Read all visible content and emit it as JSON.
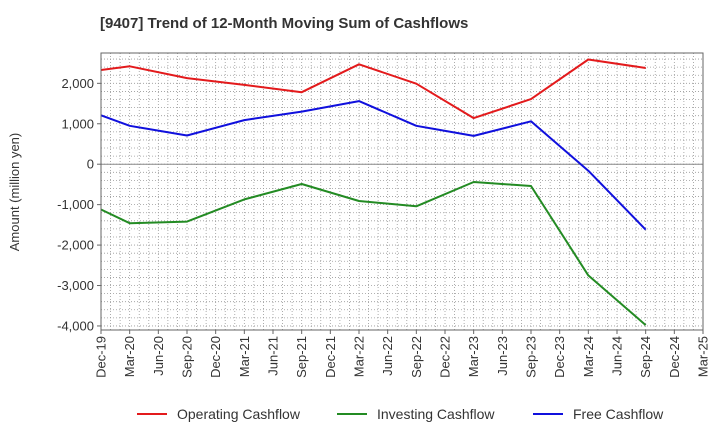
{
  "chart_data": {
    "type": "line",
    "title": "[9407]  Trend of 12-Month Moving Sum of Cashflows",
    "xlabel": "",
    "ylabel": "Amount (million yen)",
    "categories": [
      "Dec-19",
      "Mar-20",
      "Jun-20",
      "Sep-20",
      "Dec-20",
      "Mar-21",
      "Jun-21",
      "Sep-21",
      "Dec-21",
      "Mar-22",
      "Jun-22",
      "Sep-22",
      "Dec-22",
      "Mar-23",
      "Jun-23",
      "Sep-23",
      "Dec-23",
      "Mar-24",
      "Jun-24",
      "Sep-24",
      "Dec-24",
      "Mar-25"
    ],
    "yticks": [
      2000,
      1000,
      0,
      -1000,
      -2000,
      -3000,
      -4000
    ],
    "ytick_labels": [
      "2,000",
      "1,000",
      "0",
      "-1,000",
      "-2,000",
      "-3,000",
      "-4,000"
    ],
    "ylim": [
      -4100,
      2750
    ],
    "grid": true,
    "legend_position": "bottom",
    "series": [
      {
        "name": "Operating Cashflow",
        "color": "#e31a1c",
        "points": [
          {
            "x": "Dec-19",
            "y": 2330
          },
          {
            "x": "Mar-20",
            "y": 2420
          },
          {
            "x": "Sep-20",
            "y": 2130
          },
          {
            "x": "Mar-21",
            "y": 1960
          },
          {
            "x": "Sep-21",
            "y": 1780
          },
          {
            "x": "Mar-22",
            "y": 2470
          },
          {
            "x": "Sep-22",
            "y": 1990
          },
          {
            "x": "Mar-23",
            "y": 1140
          },
          {
            "x": "Sep-23",
            "y": 1610
          },
          {
            "x": "Mar-24",
            "y": 2590
          },
          {
            "x": "Sep-24",
            "y": 2380
          }
        ]
      },
      {
        "name": "Investing Cashflow",
        "color": "#238b23",
        "points": [
          {
            "x": "Dec-19",
            "y": -1120
          },
          {
            "x": "Mar-20",
            "y": -1460
          },
          {
            "x": "Sep-20",
            "y": -1420
          },
          {
            "x": "Mar-21",
            "y": -870
          },
          {
            "x": "Sep-21",
            "y": -490
          },
          {
            "x": "Mar-22",
            "y": -910
          },
          {
            "x": "Sep-22",
            "y": -1040
          },
          {
            "x": "Mar-23",
            "y": -440
          },
          {
            "x": "Sep-23",
            "y": -540
          },
          {
            "x": "Mar-24",
            "y": -2750
          },
          {
            "x": "Sep-24",
            "y": -3980
          }
        ]
      },
      {
        "name": "Free Cashflow",
        "color": "#1010dd",
        "points": [
          {
            "x": "Dec-19",
            "y": 1210
          },
          {
            "x": "Mar-20",
            "y": 950
          },
          {
            "x": "Sep-20",
            "y": 710
          },
          {
            "x": "Mar-21",
            "y": 1090
          },
          {
            "x": "Sep-21",
            "y": 1300
          },
          {
            "x": "Mar-22",
            "y": 1560
          },
          {
            "x": "Sep-22",
            "y": 950
          },
          {
            "x": "Mar-23",
            "y": 700
          },
          {
            "x": "Sep-23",
            "y": 1060
          },
          {
            "x": "Mar-24",
            "y": -160
          },
          {
            "x": "Sep-24",
            "y": -1620
          }
        ]
      }
    ]
  }
}
